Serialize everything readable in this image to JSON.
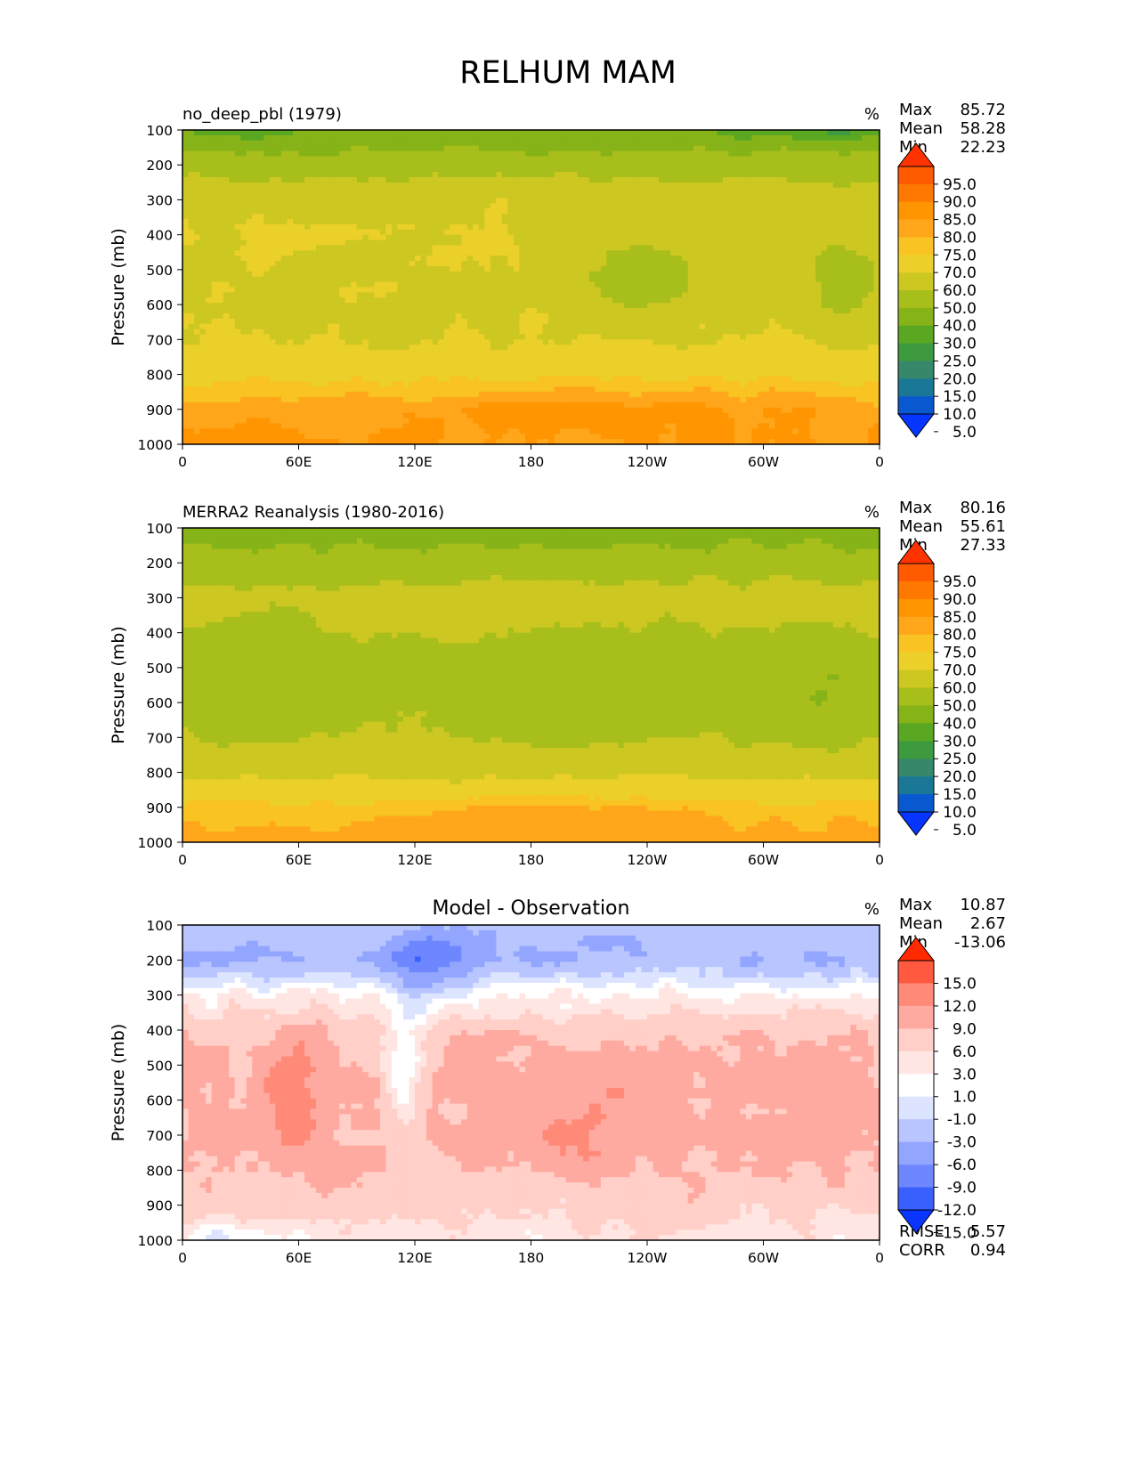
{
  "figure": {
    "title": "RELHUM MAM"
  },
  "chart_data": [
    {
      "type": "heatmap",
      "kind": "contour",
      "title": "no_deep_pbl (1979)",
      "units": "%",
      "ylabel": "Pressure (mb)",
      "xlabel": "",
      "xticks": [
        "0",
        "60E",
        "120E",
        "180",
        "120W",
        "60W",
        "0"
      ],
      "yticks": [
        "100",
        "200",
        "300",
        "400",
        "500",
        "600",
        "700",
        "800",
        "900",
        "1000"
      ],
      "xlim": [
        0,
        360
      ],
      "ylim": [
        100,
        1000
      ],
      "stats": [
        {
          "label": "Max",
          "value": "85.72"
        },
        {
          "label": "Mean",
          "value": "58.28"
        },
        {
          "label": "Min",
          "value": "22.23"
        }
      ],
      "colorbar": {
        "levels": [
          "95.0",
          "90.0",
          "85.0",
          "80.0",
          "75.0",
          "70.0",
          "60.0",
          "50.0",
          "40.0",
          "30.0",
          "25.0",
          "20.0",
          "15.0",
          "10.0",
          "5.0"
        ],
        "colors": [
          "#ff3300",
          "#ff5a00",
          "#ff7800",
          "#ff9500",
          "#ffa61a",
          "#f9c322",
          "#ecd02a",
          "#cdc722",
          "#a8be1a",
          "#86b318",
          "#5aa722",
          "#3e9a3e",
          "#37886a",
          "#1a7896",
          "#0a58d0",
          "#0535ff"
        ]
      },
      "approx_profile": {
        "pressure_levels": [
          100,
          200,
          300,
          400,
          500,
          600,
          700,
          800,
          900,
          1000
        ],
        "zonal_mean_relhum": [
          32,
          45,
          58,
          60,
          59,
          58,
          60,
          68,
          78,
          80
        ]
      }
    },
    {
      "type": "heatmap",
      "kind": "contour",
      "title": "MERRA2 Reanalysis (1980-2016)",
      "units": "%",
      "ylabel": "Pressure (mb)",
      "xlabel": "",
      "xticks": [
        "0",
        "60E",
        "120E",
        "180",
        "120W",
        "60W",
        "0"
      ],
      "yticks": [
        "100",
        "200",
        "300",
        "400",
        "500",
        "600",
        "700",
        "800",
        "900",
        "1000"
      ],
      "xlim": [
        0,
        360
      ],
      "ylim": [
        100,
        1000
      ],
      "stats": [
        {
          "label": "Max",
          "value": "80.16"
        },
        {
          "label": "Mean",
          "value": "55.61"
        },
        {
          "label": "Min",
          "value": "27.33"
        }
      ],
      "colorbar": {
        "levels": [
          "95.0",
          "90.0",
          "85.0",
          "80.0",
          "75.0",
          "70.0",
          "60.0",
          "50.0",
          "40.0",
          "30.0",
          "25.0",
          "20.0",
          "15.0",
          "10.0",
          "5.0"
        ],
        "colors": [
          "#ff3300",
          "#ff5a00",
          "#ff7800",
          "#ff9500",
          "#ffa61a",
          "#f9c322",
          "#ecd02a",
          "#cdc722",
          "#a8be1a",
          "#86b318",
          "#5aa722",
          "#3e9a3e",
          "#37886a",
          "#1a7896",
          "#0a58d0",
          "#0535ff"
        ]
      },
      "approx_profile": {
        "pressure_levels": [
          100,
          200,
          300,
          400,
          500,
          600,
          700,
          800,
          900,
          1000
        ],
        "zonal_mean_relhum": [
          35,
          45,
          55,
          52,
          50,
          50,
          52,
          58,
          72,
          78
        ]
      }
    },
    {
      "type": "heatmap",
      "kind": "contour",
      "title": "Model - Observation",
      "units": "%",
      "ylabel": "Pressure (mb)",
      "xlabel": "",
      "xticks": [
        "0",
        "60E",
        "120E",
        "180",
        "120W",
        "60W",
        "0"
      ],
      "yticks": [
        "100",
        "200",
        "300",
        "400",
        "500",
        "600",
        "700",
        "800",
        "900",
        "1000"
      ],
      "xlim": [
        0,
        360
      ],
      "ylim": [
        100,
        1000
      ],
      "stats": [
        {
          "label": "Max",
          "value": "10.87"
        },
        {
          "label": "Mean",
          "value": "2.67"
        },
        {
          "label": "Min",
          "value": "-13.06"
        }
      ],
      "extra_stats": [
        {
          "label": "RMSE",
          "value": "5.57"
        },
        {
          "label": "CORR",
          "value": "0.94"
        }
      ],
      "colorbar": {
        "levels": [
          "15.0",
          "12.0",
          "9.0",
          "6.0",
          "3.0",
          "1.0",
          "-1.0",
          "-3.0",
          "-6.0",
          "-9.0",
          "-12.0",
          "-15.0"
        ],
        "colors": [
          "#ff2a00",
          "#ff5a40",
          "#ff8a78",
          "#ffaaa0",
          "#ffcfc8",
          "#ffe6e3",
          "#ffffff",
          "#dde4ff",
          "#b8c5ff",
          "#93a6ff",
          "#6e87ff",
          "#3a5fff",
          "#0a35ff"
        ]
      },
      "approx_profile": {
        "pressure_levels": [
          100,
          200,
          300,
          400,
          500,
          600,
          700,
          800,
          900,
          1000
        ],
        "zonal_mean_difference": [
          -4,
          -6,
          1,
          5,
          7,
          7,
          7,
          6,
          4,
          2
        ]
      }
    }
  ]
}
